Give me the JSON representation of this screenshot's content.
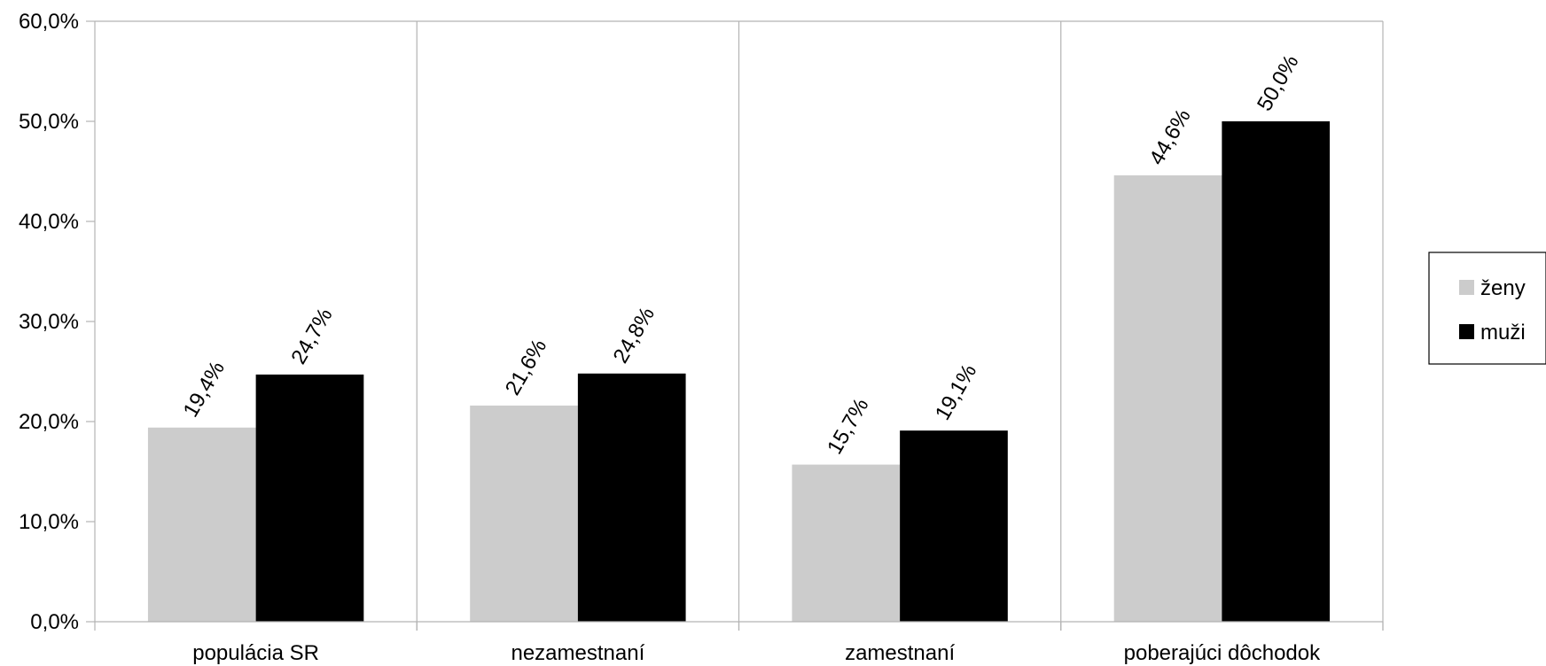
{
  "chart_data": {
    "type": "bar",
    "categories": [
      "populácia SR",
      "nezamestnaní",
      "zamestnaní",
      "poberajúci dôchodok"
    ],
    "series": [
      {
        "name": "ženy",
        "values": [
          19.4,
          21.6,
          15.7,
          44.6
        ],
        "labels": [
          "19,4%",
          "21,6%",
          "15,7%",
          "44,6%"
        ],
        "color": "#cccccc"
      },
      {
        "name": "muži",
        "values": [
          24.7,
          24.8,
          19.1,
          50.0
        ],
        "labels": [
          "24,7%",
          "24,8%",
          "19,1%",
          "50,0%"
        ],
        "color": "#000000"
      }
    ],
    "ylim": [
      0,
      60
    ],
    "yticks": [
      0,
      10,
      20,
      30,
      40,
      50,
      60
    ],
    "ytick_labels": [
      "0,0%",
      "10,0%",
      "20,0%",
      "30,0%",
      "40,0%",
      "50,0%",
      "60,0%"
    ],
    "title": "",
    "xlabel": "",
    "ylabel": "",
    "grid": "vertical category separators",
    "legend_position": "right"
  }
}
